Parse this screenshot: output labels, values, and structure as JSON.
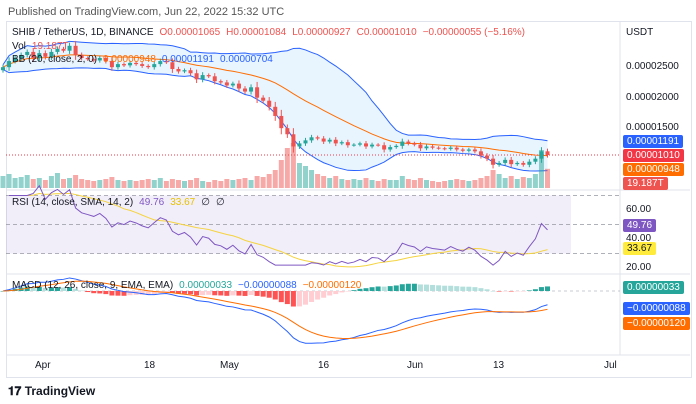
{
  "published": "Published on TradingView.com, Jun 22, 2022 15:32 UTC",
  "currency": "USDT",
  "footer": "TradingView",
  "legend": {
    "symbol": "SHIB / TetherUS, 1D, BINANCE",
    "o": "O0.00001065",
    "h": "H0.00001084",
    "l": "L0.00000927",
    "c": "C0.00001010",
    "chg": "−0.00000055 (−5.16%)",
    "vol_label": "Vol",
    "vol_val": "19.187T",
    "bb_label": "BB (20, close, 2, 0)",
    "bb_mid": "0.00000948",
    "bb_up": "0.00001191",
    "bb_low": "0.00000704",
    "rsi_label": "RSI (14, close, SMA, 14, 2)",
    "rsi_val": "49.76",
    "rsi_sma": "33.67",
    "rsi_x1": "∅",
    "rsi_x2": "∅",
    "macd_label": "MACD (12, 26, close, 9, EMA, EMA)",
    "macd_hist": "0.00000033",
    "macd_line": "−0.00000088",
    "macd_signal": "−0.00000120"
  },
  "axis": {
    "price_ticks": [
      "0.00002500",
      "0.00002000",
      "0.00001500"
    ],
    "rsi_ticks": [
      "60.00",
      "40.00",
      "20.00"
    ],
    "tags": {
      "bb_up": "0.00001191",
      "close": "0.00001010",
      "bb_mid": "0.00000948",
      "vol": "19.187T",
      "rsi": "49.76",
      "rsi_sma": "33.67",
      "macd_hist": "0.00000033",
      "macd_line": "−0.00000088",
      "macd_signal": "−0.00000120"
    },
    "x_labels": [
      "Apr",
      "18",
      "May",
      "16",
      "Jun",
      "13",
      "Jul"
    ]
  },
  "colors": {
    "up": "#26a69a",
    "down": "#ef5350",
    "bb": "#2962ff",
    "basis": "#ff6d00",
    "rsi": "#7e57c2",
    "rsi_sma": "#f5d33f"
  },
  "chart_data": {
    "type": "candlestick",
    "unit": "1e-8 USDT",
    "start": "2022-03-24",
    "end": "2022-06-22",
    "closes": [
      2450,
      2550,
      2600,
      2650,
      2700,
      2600,
      2680,
      2620,
      2700,
      2750,
      2720,
      2800,
      2650,
      2600,
      2580,
      2560,
      2600,
      2550,
      2450,
      2500,
      2480,
      2520,
      2500,
      2470,
      2450,
      2500,
      2550,
      2530,
      2420,
      2380,
      2400,
      2350,
      2250,
      2320,
      2300,
      2220,
      2200,
      2150,
      2180,
      2100,
      2050,
      2120,
      1950,
      1900,
      1800,
      1650,
      1450,
      1350,
      1150,
      1200,
      1250,
      1300,
      1280,
      1230,
      1260,
      1200,
      1220,
      1170,
      1180,
      1200,
      1150,
      1180,
      1170,
      1100,
      1140,
      1160,
      1230,
      1200,
      1180,
      1120,
      1150,
      1130,
      1120,
      1110,
      1130,
      1100,
      1080,
      1100,
      1070,
      1000,
      950,
      850,
      880,
      930,
      860,
      880,
      850,
      900,
      950,
      1070,
      1010
    ],
    "volumes_T": [
      12,
      14,
      10,
      11,
      13,
      9,
      10,
      8,
      12,
      15,
      9,
      10,
      13,
      9,
      8,
      7,
      8,
      9,
      11,
      8,
      7,
      8,
      7,
      8,
      9,
      8,
      10,
      7,
      9,
      8,
      7,
      8,
      10,
      7,
      6,
      8,
      7,
      9,
      8,
      9,
      10,
      8,
      12,
      11,
      14,
      18,
      28,
      40,
      45,
      25,
      22,
      18,
      14,
      12,
      10,
      12,
      9,
      8,
      9,
      8,
      10,
      8,
      7,
      9,
      8,
      8,
      12,
      9,
      8,
      10,
      8,
      7,
      6,
      7,
      8,
      9,
      8,
      7,
      8,
      10,
      12,
      18,
      14,
      10,
      12,
      9,
      11,
      10,
      14,
      38,
      19.187
    ],
    "price_axis": [
      700,
      2900
    ],
    "rsi_range": [
      20,
      80
    ]
  }
}
